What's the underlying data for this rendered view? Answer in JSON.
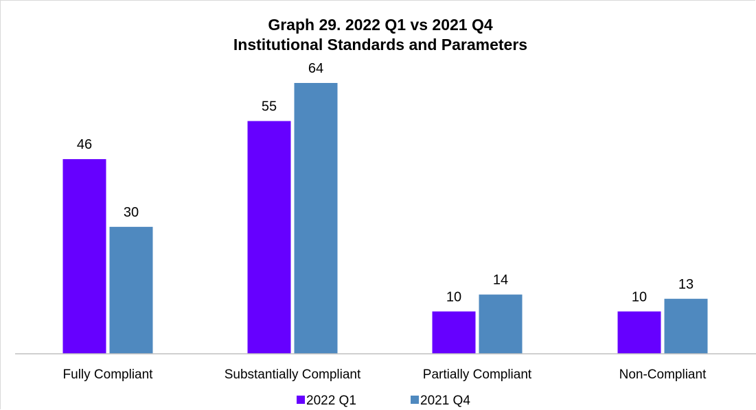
{
  "chart_data": {
    "type": "bar",
    "title": "Graph 29. 2022 Q1 vs 2021 Q4",
    "subtitle": "Institutional Standards and Parameters",
    "categories": [
      "Fully Compliant",
      "Substantially Compliant",
      "Partially Compliant",
      "Non-Compliant"
    ],
    "series": [
      {
        "name": "2022 Q1",
        "values": [
          46,
          55,
          10,
          10
        ],
        "color": "#6600ff"
      },
      {
        "name": "2021 Q4",
        "values": [
          30,
          64,
          14,
          13
        ],
        "color": "#4f89bf"
      }
    ],
    "ylim": [
      0,
      64
    ],
    "grid": false,
    "legend_position": "bottom",
    "axis_color": "#bfbfbf"
  }
}
